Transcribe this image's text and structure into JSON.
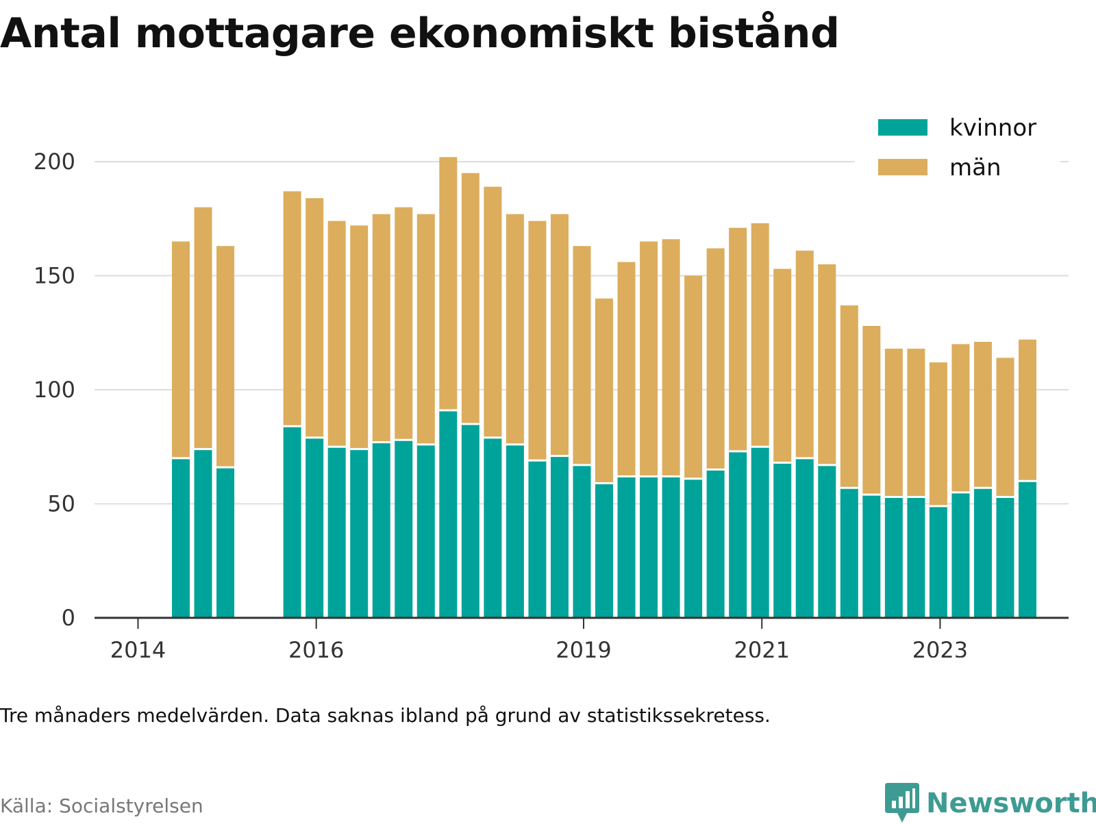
{
  "title": "Antal mottagare ekonomiskt bistånd",
  "note": "Tre månaders medelvärden. Data saknas ibland på grund av statistikssekretess.",
  "source": "Källa: Socialstyrelsen",
  "logo_text": "Newsworthy",
  "colors": {
    "kvinnor": "#00a39a",
    "man": "#dbad5d",
    "grid": "#dddddd",
    "axis": "#333333",
    "logo": "#3e9b93"
  },
  "chart_data": {
    "type": "bar",
    "stacked": true,
    "ylim": [
      0,
      200
    ],
    "yticks": [
      0,
      50,
      100,
      150,
      200
    ],
    "xticks": [
      "2014",
      "2016",
      "2019",
      "2021",
      "2023"
    ],
    "legend": {
      "position": "top-right",
      "entries": [
        "kvinnor",
        "män"
      ]
    },
    "grid": true,
    "categories": [
      "2014-Q2",
      "2014-Q3",
      "2014-Q4",
      "2015-Q3",
      "2015-Q4",
      "2016-Q1",
      "2016-Q2",
      "2016-Q3",
      "2016-Q4",
      "2017-Q1",
      "2017-Q2",
      "2017-Q3",
      "2017-Q4",
      "2018-Q1",
      "2018-Q2",
      "2018-Q3",
      "2018-Q4",
      "2019-Q1",
      "2019-Q2",
      "2019-Q3",
      "2019-Q4",
      "2020-Q1",
      "2020-Q2",
      "2020-Q3",
      "2020-Q4",
      "2021-Q1",
      "2021-Q2",
      "2021-Q3",
      "2021-Q4",
      "2022-Q1",
      "2022-Q2",
      "2022-Q3",
      "2022-Q4",
      "2023-Q1",
      "2023-Q2",
      "2023-Q3",
      "2023-Q4"
    ],
    "series": [
      {
        "name": "kvinnor",
        "values": [
          70,
          74,
          66,
          84,
          79,
          75,
          74,
          77,
          78,
          76,
          91,
          85,
          79,
          76,
          69,
          71,
          67,
          59,
          62,
          62,
          62,
          61,
          65,
          73,
          75,
          68,
          70,
          67,
          57,
          54,
          53,
          53,
          49,
          55,
          57,
          53,
          60
        ]
      },
      {
        "name": "män",
        "values": [
          95,
          106,
          97,
          103,
          105,
          99,
          98,
          100,
          102,
          101,
          111,
          110,
          110,
          101,
          105,
          106,
          96,
          81,
          94,
          103,
          104,
          89,
          97,
          98,
          98,
          85,
          91,
          88,
          80,
          74,
          65,
          65,
          63,
          65,
          64,
          61,
          62
        ]
      }
    ]
  }
}
